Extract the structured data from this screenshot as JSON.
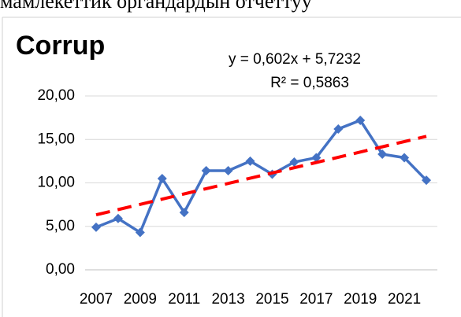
{
  "header_text": "мамлекеттик органдардын отчеттуу",
  "chart_data": {
    "type": "line",
    "title": "Corrup",
    "categories": [
      "2007",
      null,
      "2009",
      null,
      "2011",
      null,
      "2013",
      null,
      "2015",
      null,
      "2017",
      null,
      "2019",
      null,
      "2021",
      null
    ],
    "series": [
      {
        "name": "Corrup",
        "color": "#4472c4",
        "values": [
          4.9,
          5.9,
          4.3,
          10.5,
          6.6,
          11.4,
          11.4,
          12.5,
          11.0,
          12.4,
          12.9,
          16.2,
          17.2,
          13.3,
          12.9,
          10.3
        ]
      }
    ],
    "trendline": {
      "label": "y = 0,602x + 5,7232",
      "r2_label": "R² = 0,5863",
      "slope": 0.602,
      "intercept": 5.7232,
      "color": "#ff0000"
    },
    "ylim": [
      0,
      20
    ],
    "yticks": [
      {
        "value": 0,
        "label": "0,00"
      },
      {
        "value": 5,
        "label": "5,00"
      },
      {
        "value": 10,
        "label": "10,00"
      },
      {
        "value": 15,
        "label": "15,00"
      },
      {
        "value": 20,
        "label": "20,00"
      }
    ],
    "grid": true
  }
}
